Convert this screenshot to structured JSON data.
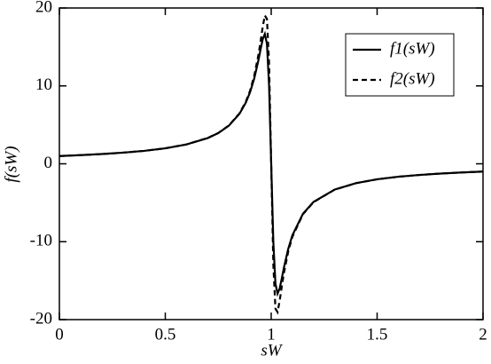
{
  "chart_data": {
    "type": "line",
    "x_label": "sW",
    "y_label": "f(sW)",
    "x": [
      0,
      0.1,
      0.2,
      0.3,
      0.4,
      0.5,
      0.6,
      0.7,
      0.75,
      0.8,
      0.85,
      0.88,
      0.9,
      0.92,
      0.94,
      0.95,
      0.96,
      0.97,
      0.98,
      0.99,
      1.0,
      1.01,
      1.02,
      1.03,
      1.04,
      1.05,
      1.06,
      1.08,
      1.1,
      1.15,
      1.2,
      1.3,
      1.4,
      1.5,
      1.6,
      1.7,
      1.8,
      1.9,
      2.0
    ],
    "series": [
      {
        "name": "f1(sW)",
        "color": "#000000",
        "dash": "solid",
        "values": [
          1.0,
          1.11,
          1.25,
          1.43,
          1.66,
          1.99,
          2.49,
          3.3,
          3.94,
          4.89,
          6.41,
          7.84,
          9.17,
          10.96,
          13.33,
          14.71,
          16.0,
          16.67,
          15.38,
          10.0,
          0,
          -10.0,
          -15.38,
          -16.67,
          -16.0,
          -14.71,
          -13.33,
          -10.96,
          -9.17,
          -6.41,
          -4.89,
          -3.3,
          -2.49,
          -1.99,
          -1.66,
          -1.43,
          -1.25,
          -1.11,
          -1.0
        ]
      },
      {
        "name": "f2(sW)",
        "color": "#000000",
        "dash": "dashed",
        "values": [
          1.0,
          1.11,
          1.25,
          1.43,
          1.66,
          1.99,
          2.49,
          3.31,
          3.95,
          4.92,
          6.47,
          7.96,
          9.37,
          11.31,
          14.03,
          15.74,
          17.57,
          19.04,
          18.59,
          12.89,
          0,
          -12.89,
          -18.59,
          -19.04,
          -17.57,
          -15.74,
          -14.03,
          -11.31,
          -9.37,
          -6.47,
          -4.92,
          -3.31,
          -2.49,
          -1.99,
          -1.66,
          -1.43,
          -1.25,
          -1.11,
          -1.0
        ]
      }
    ],
    "xlim": [
      0,
      2
    ],
    "xticks": [
      0,
      0.5,
      1,
      1.5,
      2
    ],
    "ylim": [
      -20,
      20
    ],
    "yticks": [
      -20,
      -10,
      0,
      10,
      20
    ],
    "grid": false,
    "legend": "upper right"
  }
}
